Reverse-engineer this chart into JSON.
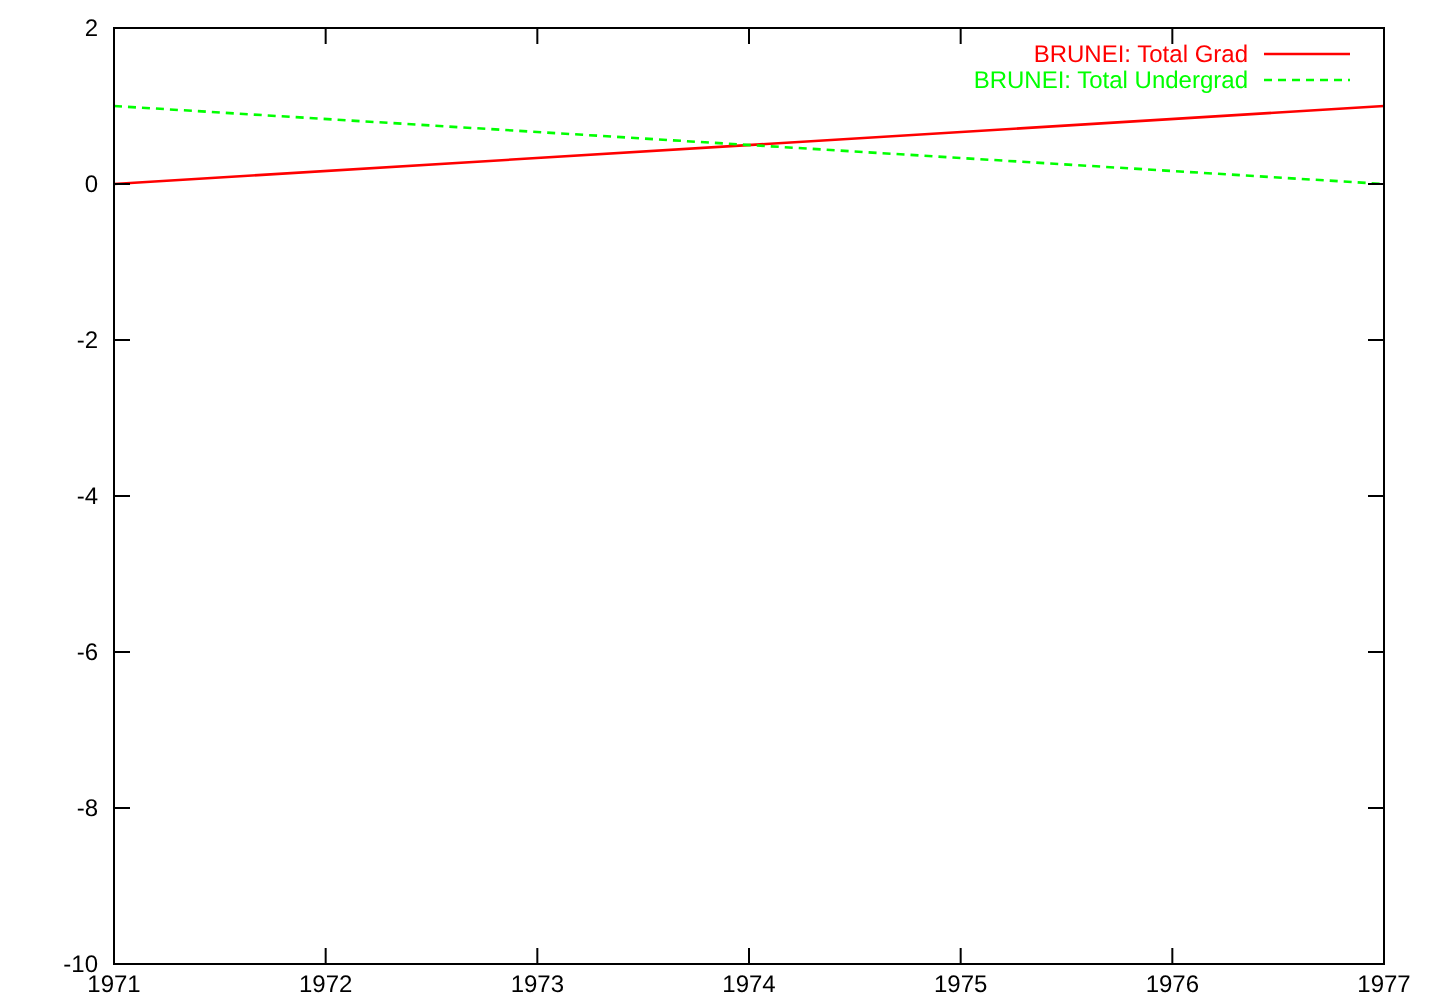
{
  "chart_data": {
    "type": "line",
    "x": [
      1971,
      1977
    ],
    "xlim": [
      1971,
      1977
    ],
    "xticks": [
      1971,
      1972,
      1973,
      1974,
      1975,
      1976,
      1977
    ],
    "ylim": [
      -10,
      2
    ],
    "yticks": [
      -10,
      -8,
      -6,
      -4,
      -2,
      0,
      2
    ],
    "grid": false,
    "legend": "top right",
    "series": [
      {
        "name": "BRUNEI: Total Grad",
        "color": "#ff0000",
        "values": [
          0,
          1
        ],
        "line_style": "solid"
      },
      {
        "name": "BRUNEI: Total Undergrad",
        "color": "#00ff00",
        "values": [
          1,
          0
        ],
        "line_style": "dashed"
      }
    ]
  }
}
